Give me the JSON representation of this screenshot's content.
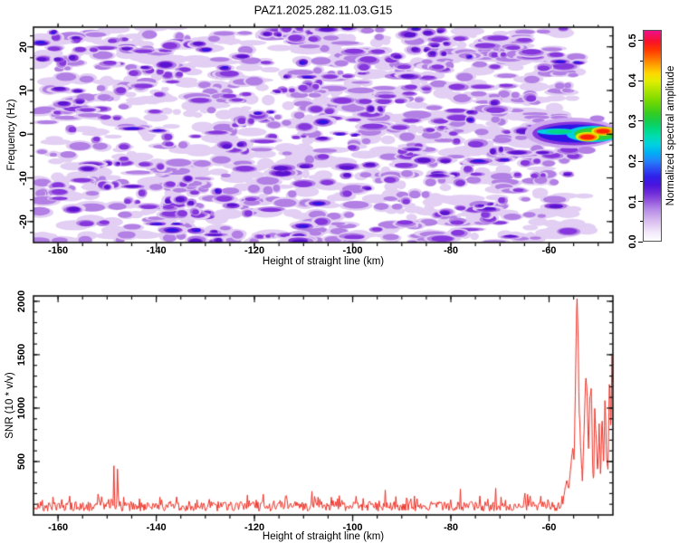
{
  "title": "PAZ1.2025.282.11.03.G15",
  "chart_data": [
    {
      "type": "heatmap",
      "name": "spectrogram",
      "xlabel": "Height of straight line (km)",
      "ylabel": "Frequency (Hz)",
      "xlim": [
        -165,
        -47
      ],
      "ylim": [
        -24.8,
        24.5
      ],
      "xticks_major": [
        -160,
        -140,
        -120,
        -100,
        -80,
        -60
      ],
      "xtick_minor_step": 5,
      "yticks_major": [
        -20,
        -10,
        0,
        10,
        20
      ],
      "ytick_minor_step": 2.5,
      "grid": false,
      "colorbar": {
        "label": "Normalized spectral amplitude",
        "ticks": [
          0.0,
          0.1,
          0.2,
          0.3,
          0.4,
          0.5
        ],
        "tick_minor_step": 0.05,
        "range": [
          0,
          0.527
        ],
        "stops": [
          [
            0.0,
            "#ffffff"
          ],
          [
            0.038,
            "#f3eafb"
          ],
          [
            0.095,
            "#d9bcee"
          ],
          [
            0.152,
            "#b387e6"
          ],
          [
            0.19,
            "#9355dd"
          ],
          [
            0.228,
            "#6e2bd8"
          ],
          [
            0.266,
            "#4a14dd"
          ],
          [
            0.304,
            "#2f1fe8"
          ],
          [
            0.342,
            "#2b4df2"
          ],
          [
            0.38,
            "#2382fa"
          ],
          [
            0.417,
            "#00adf5"
          ],
          [
            0.455,
            "#00cfe2"
          ],
          [
            0.493,
            "#00dcb5"
          ],
          [
            0.531,
            "#00d983"
          ],
          [
            0.569,
            "#15cd4e"
          ],
          [
            0.607,
            "#35cc20"
          ],
          [
            0.664,
            "#74d900"
          ],
          [
            0.721,
            "#b3e600"
          ],
          [
            0.759,
            "#e0ee00"
          ],
          [
            0.797,
            "#fed800"
          ],
          [
            0.835,
            "#ffa300"
          ],
          [
            0.873,
            "#ff6a00"
          ],
          [
            0.911,
            "#ff3500"
          ],
          [
            0.949,
            "#f8122a"
          ],
          [
            1.0,
            "#ee0f8d"
          ]
        ]
      },
      "noise": {
        "description": "speckle noise of normalized spectral amplitude 0-0.15 covering heights -165 to -55 km over full frequency range; white beyond -55 km",
        "seed": 20250282,
        "height_extent": [
          -165,
          -55
        ],
        "levels": [
          "#e2cff3",
          "#b27fe4",
          "#8536dc",
          "#5a13cf",
          "#2e13e6"
        ],
        "counts": [
          430,
          300,
          170,
          62,
          20
        ]
      },
      "signal_track": {
        "description": "occultation signal band near 0 Hz from -63 km to right edge, peak amplitude ~0.5 (red cores) near -52 and -49 km",
        "elements": [
          {
            "h": [
              -64.9,
              -45.7
            ],
            "f": [
              -3.25,
              3.79
            ],
            "color": "#cfa9ef"
          },
          {
            "h": [
              -63.4,
              -46.4
            ],
            "f": [
              -2.52,
              2.86
            ],
            "color": "#8536dc"
          },
          {
            "h": [
              -62.3,
              -46.8
            ],
            "f": [
              -1.9,
              2.24
            ],
            "color": "#2e13e6"
          },
          {
            "h": [
              -56.5,
              -45.5
            ],
            "f": [
              -1.8,
              1.92
            ],
            "color": "#00cfe2"
          },
          {
            "h": [
              -62.5,
              -54.3
            ],
            "f": [
              -0.14,
              1.3
            ],
            "color": "#00cfe2"
          },
          {
            "h": [
              -60.5,
              -55.3
            ],
            "f": [
              0.12,
              1.04
            ],
            "color": "#00d983"
          },
          {
            "h": [
              -54.9,
              -46.1
            ],
            "f": [
              -1.39,
              1.51
            ],
            "color": "#2fcc35"
          },
          {
            "h": [
              -54.6,
              -49.8
            ],
            "f": [
              -1.64,
              0.52
            ],
            "color": "#e0ee00"
          },
          {
            "h": [
              -54.1,
              -50.2
            ],
            "f": [
              -1.49,
              0.17
            ],
            "color": "#ff8c00"
          },
          {
            "h": [
              -53.7,
              -50.7
            ],
            "f": [
              -1.24,
              -0.08
            ],
            "color": "#ff2200"
          },
          {
            "h": [
              -51.4,
              -46.6
            ],
            "f": [
              -0.36,
              1.72
            ],
            "color": "#e0ee00"
          },
          {
            "h": [
              -50.9,
              -47.2
            ],
            "f": [
              -0.11,
              1.47
            ],
            "color": "#ff8c00"
          },
          {
            "h": [
              -50.4,
              -47.6
            ],
            "f": [
              0.14,
              1.22
            ],
            "color": "#ff2200"
          },
          {
            "h": [
              -54.2,
              -50.5
            ],
            "f": [
              -4.5,
              -2.84
            ],
            "color": "#b27fe4"
          },
          {
            "h": [
              -51.7,
              -48.7
            ],
            "f": [
              2.86,
              4.3
            ],
            "color": "#b27fe4"
          }
        ]
      }
    },
    {
      "type": "line",
      "name": "snr",
      "xlabel": "Height of straight line (km)",
      "ylabel": "SNR (10 * v/v)",
      "xlim": [
        -165,
        -47
      ],
      "ylim": [
        0,
        2050
      ],
      "xticks_major": [
        -160,
        -140,
        -120,
        -100,
        -80,
        -60
      ],
      "xtick_minor_step": 5,
      "yticks_major": [
        500,
        1000,
        1500,
        2000
      ],
      "ytick_minor_step": 100,
      "grid": false,
      "line_color": "#ee3328",
      "baseline": {
        "description": "noisy SNR floor from -165 to -57 km",
        "seed": 1103,
        "mean": 110,
        "min": 25,
        "max": 260,
        "height_range": [
          -165,
          -57
        ],
        "bump_spikes": [
          [
            -148.6,
            395
          ],
          [
            -147.9,
            340
          ]
        ]
      },
      "spike_points": [
        [
          -57.0,
          180
        ],
        [
          -56.4,
          320
        ],
        [
          -56.0,
          240
        ],
        [
          -55.6,
          430
        ],
        [
          -55.2,
          620
        ],
        [
          -54.9,
          520
        ],
        [
          -54.7,
          980
        ],
        [
          -54.5,
          1600
        ],
        [
          -54.35,
          2050
        ],
        [
          -54.1,
          1750
        ],
        [
          -53.9,
          1050
        ],
        [
          -53.6,
          640
        ],
        [
          -53.2,
          310
        ],
        [
          -52.9,
          760
        ],
        [
          -52.5,
          1310
        ],
        [
          -52.2,
          1080
        ],
        [
          -52.0,
          580
        ],
        [
          -51.7,
          1060
        ],
        [
          -51.4,
          1180
        ],
        [
          -51.1,
          420
        ],
        [
          -50.9,
          330
        ],
        [
          -50.7,
          1010
        ],
        [
          -50.4,
          690
        ],
        [
          -50.1,
          390
        ],
        [
          -49.8,
          820
        ],
        [
          -49.5,
          360
        ],
        [
          -49.2,
          930
        ],
        [
          -48.9,
          480
        ],
        [
          -48.6,
          1120
        ],
        [
          -48.3,
          560
        ],
        [
          -48.0,
          430
        ],
        [
          -47.7,
          1340
        ],
        [
          -47.4,
          760
        ],
        [
          -47.2,
          1560
        ],
        [
          -47.0,
          950
        ]
      ]
    }
  ]
}
